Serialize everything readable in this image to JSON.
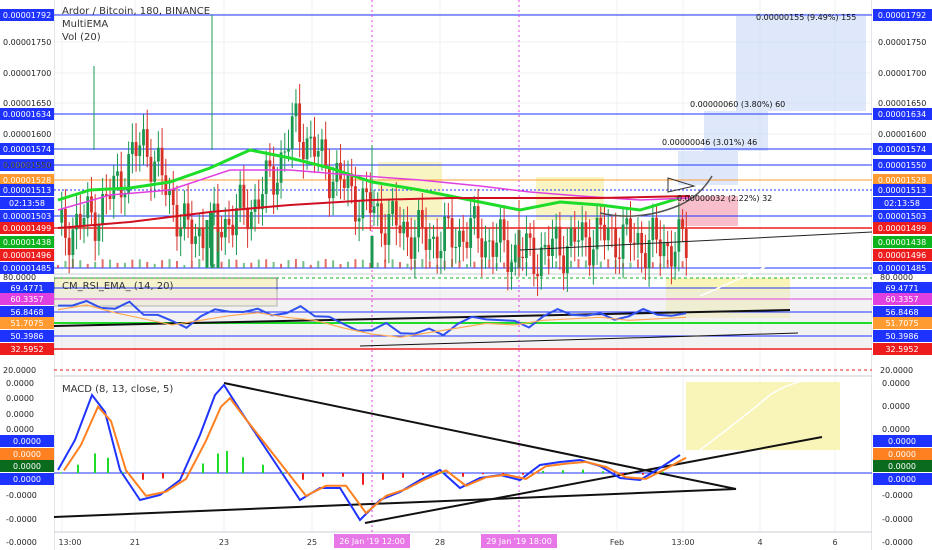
{
  "header": {
    "symbol_line": "Ardor / Bitcoin, 180, BINANCE",
    "indicator1": "MultiEMA",
    "indicator2": "Vol (20)",
    "rsi_title": "CM_RSI_EMA_ (14, 20)",
    "macd_title": "MACD (8, 13, close, 5)"
  },
  "price_axis": {
    "ticks": [
      "0.00001750",
      "0.00001700",
      "0.00001650",
      "0.00001600",
      "0.00001550"
    ],
    "badges": [
      {
        "label": "0.00001792",
        "color": "#1e33ff",
        "text": "#ffffff"
      },
      {
        "label": "0.00001634",
        "color": "#1e33ff",
        "text": "#ffffff"
      },
      {
        "label": "0.00001574",
        "color": "#1e33ff",
        "text": "#ffffff"
      },
      {
        "label": "0.00001550",
        "color": "#1e33ff",
        "text": "#ffffff"
      },
      {
        "label": "0.00001528",
        "color": "#ff9b30",
        "text": "#ffffff"
      },
      {
        "label": "0.00001513",
        "color": "#1e33ff",
        "text": "#ffffff"
      },
      {
        "label": "02:13:58",
        "color": "#1e33ff",
        "text": "#ffffff"
      },
      {
        "label": "0.00001503",
        "color": "#1e33ff",
        "text": "#ffffff"
      },
      {
        "label": "0.00001499",
        "color": "#ee1d1d",
        "text": "#ffffff"
      },
      {
        "label": "0.00001438",
        "color": "#0bb41d",
        "text": "#ffffff"
      },
      {
        "label": "0.00001496",
        "color": "#ee1d1d",
        "text": "#ffffff"
      },
      {
        "label": "0.00001485",
        "color": "#1e33ff",
        "text": "#ffffff"
      }
    ]
  },
  "rsi_axis": {
    "ticks": [
      "80.0000",
      "20.0000"
    ],
    "badges": [
      {
        "label": "69.4771",
        "color": "#1e33ff",
        "text": "#ffffff"
      },
      {
        "label": "60.3357",
        "color": "#e040e0",
        "text": "#ffffff"
      },
      {
        "label": "56.8468",
        "color": "#1e33ff",
        "text": "#ffffff"
      },
      {
        "label": "51.7075",
        "color": "#ff9b30",
        "text": "#ffffff"
      },
      {
        "label": "50.3986",
        "color": "#1e33ff",
        "text": "#ffffff"
      },
      {
        "label": "32.5952",
        "color": "#ee1d1d",
        "text": "#ffffff"
      }
    ]
  },
  "macd_axis": {
    "ticks": [
      "0.0000",
      "0.0000",
      "0.0000",
      "-0.0000",
      "-0.0000",
      "-0.0000"
    ],
    "badges": [
      {
        "label": "0.0000",
        "color": "#1e33ff",
        "text": "#ffffff"
      },
      {
        "label": "0.0000",
        "color": "#ff8020",
        "text": "#ffffff"
      },
      {
        "label": "0.0000",
        "color": "#0b6b1d",
        "text": "#ffffff"
      },
      {
        "label": "0.0000",
        "color": "#1e33ff",
        "text": "#ffffff"
      }
    ]
  },
  "left_axis": {
    "ticks": [
      "0.0000",
      "0.0000",
      "0.0000",
      "0.0000",
      "0.0000",
      "-0.0000",
      "-0.0000",
      "-0.0000"
    ]
  },
  "time_axis": {
    "labels": [
      "13:00",
      "21",
      "23",
      "25",
      "28",
      "Feb",
      "13:00",
      "4",
      "6"
    ],
    "highlight_labels": [
      "26 Jan '19  12:00",
      "29 Jan '19  18:00"
    ]
  },
  "annotations": {
    "measure_top": "0.00000155 (9.49%) 155",
    "measure_mid": "0.00000060 (3.80%) 60",
    "measure_low": "0.00000046 (3.01%) 46",
    "measure_neg": "0.00000032 (2.22%) 32"
  },
  "chart_data": {
    "type": "candlestick",
    "title": "Ardor / Bitcoin, 180, BINANCE",
    "xlabel": "",
    "ylabel": "",
    "ylim": [
      1.48e-05,
      1.8e-05
    ],
    "x_labels": [
      "13:00",
      "21",
      "23",
      "25",
      "28",
      "Feb",
      "13:00",
      "4",
      "6"
    ],
    "close_series": [
      1.525e-05,
      1.54e-05,
      1.555e-05,
      1.6e-05,
      1.64e-05,
      1.58e-05,
      1.525e-05,
      1.53e-05,
      1.545e-05,
      1.56e-05,
      1.6e-05,
      1.66e-05,
      1.62e-05,
      1.59e-05,
      1.565e-05,
      1.545e-05,
      1.53e-05,
      1.52e-05,
      1.52e-05,
      1.53e-05,
      1.515e-05,
      1.505e-05,
      1.5e-05,
      1.51e-05,
      1.518e-05,
      1.525e-05,
      1.522e-05,
      1.515e-05,
      1.512e-05,
      1.513e-05
    ],
    "lines": {
      "ema_green": "#1ddd2a",
      "ema_magenta": "#e040e0",
      "ema_red": "#d01020"
    },
    "rsi": {
      "overbought": 80,
      "oversold": 20,
      "values": [
        62,
        65,
        60,
        56,
        52,
        55,
        58,
        60,
        57,
        55,
        50,
        46,
        44,
        47,
        50,
        53,
        52,
        55,
        56,
        57,
        55,
        56,
        57
      ]
    },
    "macd": {
      "legend": [
        "MACD (8, 13, close, 5)"
      ]
    }
  }
}
